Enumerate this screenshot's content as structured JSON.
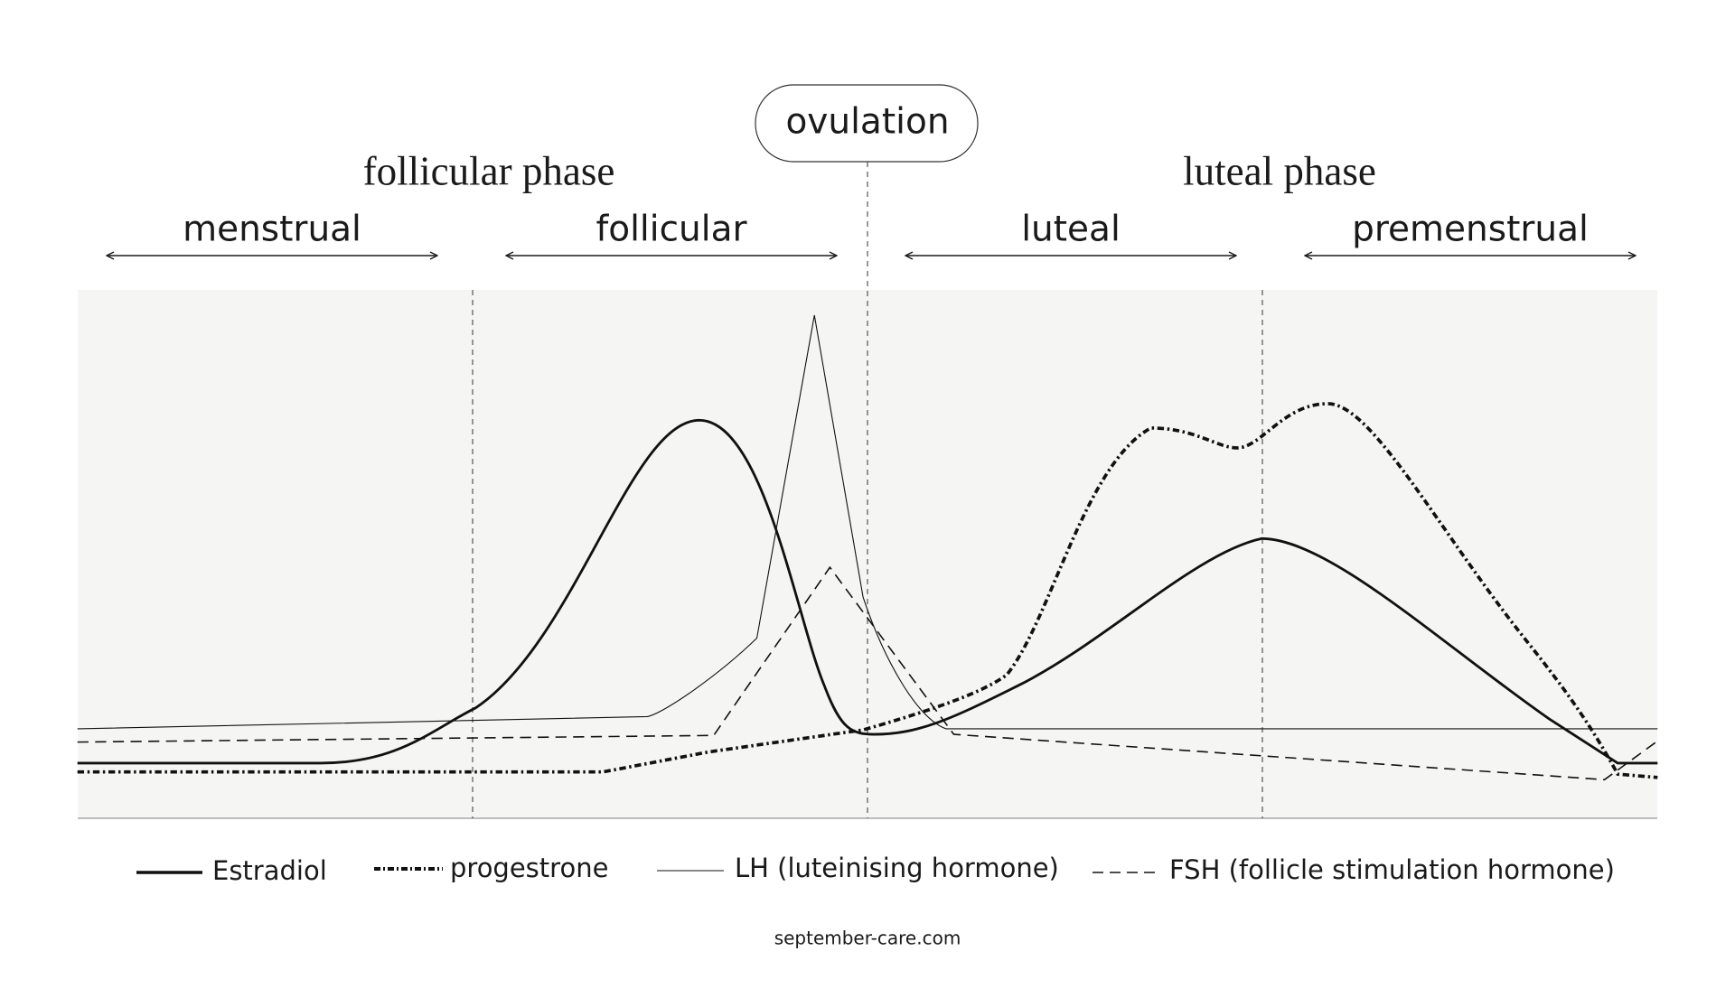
{
  "header": {
    "ovulation": "ovulation",
    "phases": [
      "follicular phase",
      "luteal phase"
    ],
    "subphases": [
      "menstrual",
      "follicular",
      "luteal",
      "premenstrual"
    ]
  },
  "legend": [
    "Estradiol",
    "progestrone",
    "LH (luteinising hormone)",
    "FSH (follicle stimulation hormone)"
  ],
  "footer": "september-care.com"
}
